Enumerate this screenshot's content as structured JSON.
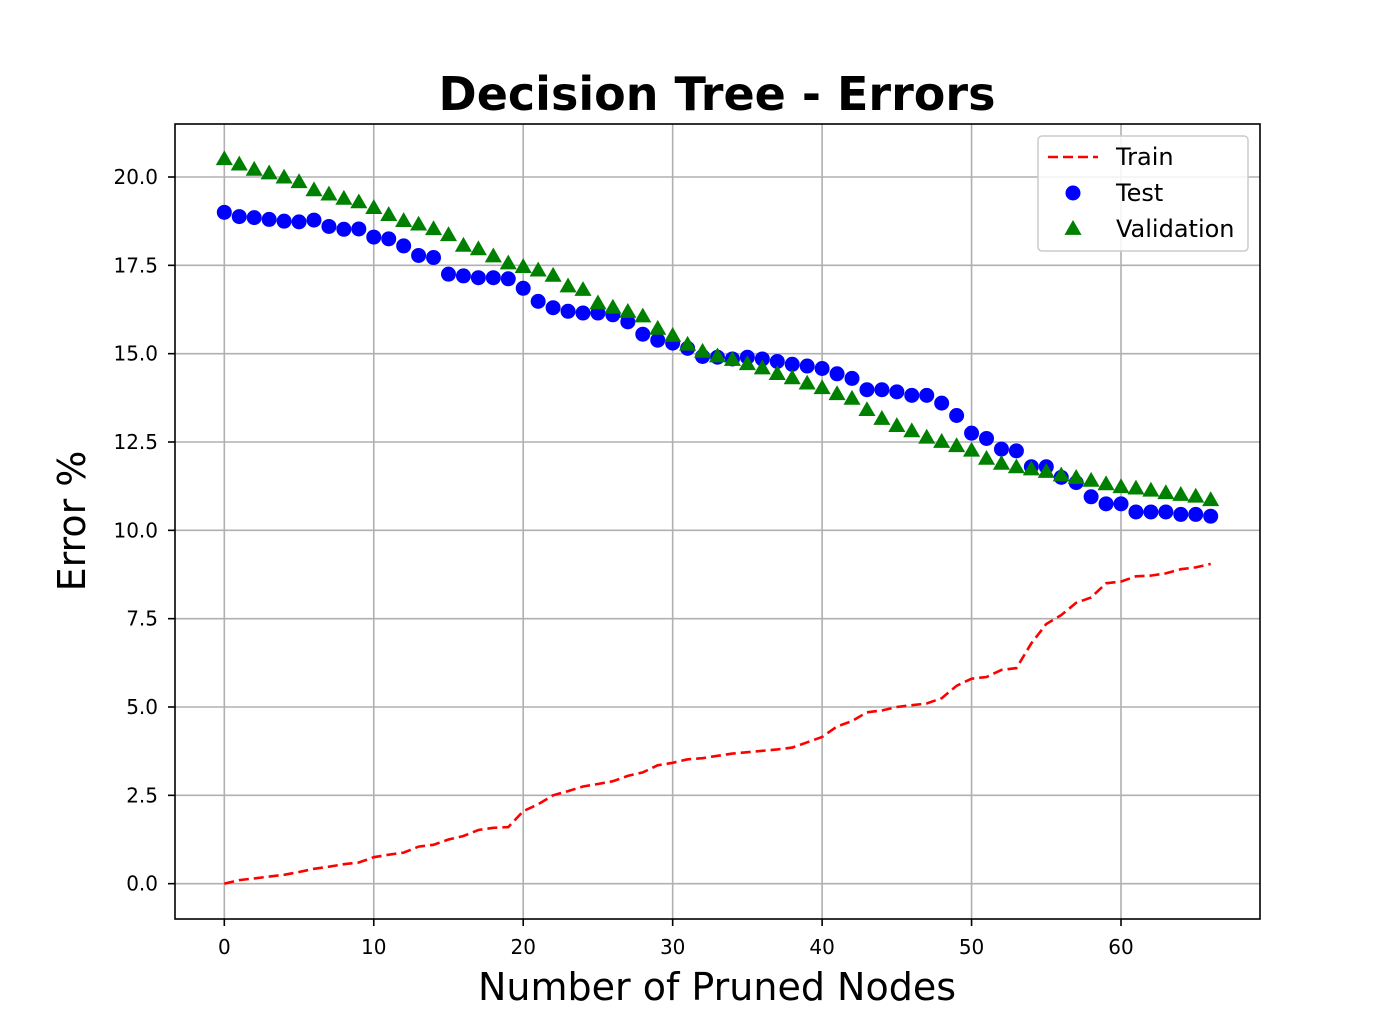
{
  "chart_data": {
    "type": "line",
    "title": "Decision Tree - Errors",
    "xlabel": "Number of Pruned Nodes",
    "ylabel": "Error %",
    "xlim": [
      -3.3,
      69.3
    ],
    "ylim": [
      -1.0,
      21.5
    ],
    "xticks": [
      0,
      10,
      20,
      30,
      40,
      50,
      60
    ],
    "xtick_labels": [
      "0",
      "10",
      "20",
      "30",
      "40",
      "50",
      "60"
    ],
    "yticks": [
      0,
      2.5,
      5,
      7.5,
      10,
      12.5,
      15,
      17.5,
      20
    ],
    "ytick_labels": [
      "0.0",
      "2.5",
      "5.0",
      "7.5",
      "10.0",
      "12.5",
      "15.0",
      "17.5",
      "20.0"
    ],
    "grid": true,
    "legend_position": "top-right",
    "x": [
      0,
      1,
      2,
      3,
      4,
      5,
      6,
      7,
      8,
      9,
      10,
      11,
      12,
      13,
      14,
      15,
      16,
      17,
      18,
      19,
      20,
      21,
      22,
      23,
      24,
      25,
      26,
      27,
      28,
      29,
      30,
      31,
      32,
      33,
      34,
      35,
      36,
      37,
      38,
      39,
      40,
      41,
      42,
      43,
      44,
      45,
      46,
      47,
      48,
      49,
      50,
      51,
      52,
      53,
      54,
      55,
      56,
      57,
      58,
      59,
      60,
      61,
      62,
      63,
      64,
      65,
      66
    ],
    "series": [
      {
        "name": "Train",
        "style": "dashed-line",
        "color": "#ff0000",
        "values": [
          0.0,
          0.1,
          0.15,
          0.2,
          0.25,
          0.33,
          0.42,
          0.48,
          0.55,
          0.6,
          0.75,
          0.82,
          0.88,
          1.05,
          1.1,
          1.25,
          1.35,
          1.52,
          1.58,
          1.6,
          2.05,
          2.25,
          2.5,
          2.62,
          2.75,
          2.82,
          2.9,
          3.05,
          3.15,
          3.35,
          3.42,
          3.52,
          3.55,
          3.62,
          3.68,
          3.72,
          3.76,
          3.8,
          3.85,
          4.0,
          4.15,
          4.45,
          4.6,
          4.85,
          4.9,
          5.0,
          5.05,
          5.1,
          5.25,
          5.6,
          5.8,
          5.85,
          6.05,
          6.1,
          6.8,
          7.35,
          7.6,
          7.95,
          8.1,
          8.5,
          8.55,
          8.7,
          8.72,
          8.78,
          8.9,
          8.95,
          9.05
        ]
      },
      {
        "name": "Test",
        "style": "circle-markers",
        "color": "#0000ff",
        "values": [
          19.0,
          18.88,
          18.85,
          18.8,
          18.75,
          18.73,
          18.78,
          18.6,
          18.52,
          18.53,
          18.3,
          18.25,
          18.05,
          17.78,
          17.72,
          17.25,
          17.2,
          17.15,
          17.15,
          17.12,
          16.85,
          16.48,
          16.3,
          16.2,
          16.15,
          16.15,
          16.1,
          15.9,
          15.55,
          15.38,
          15.3,
          15.15,
          14.92,
          14.9,
          14.85,
          14.9,
          14.85,
          14.78,
          14.7,
          14.65,
          14.58,
          14.43,
          14.3,
          13.98,
          13.98,
          13.92,
          13.82,
          13.82,
          13.6,
          13.25,
          12.75,
          12.6,
          12.3,
          12.25,
          11.8,
          11.8,
          11.5,
          11.35,
          10.95,
          10.75,
          10.75,
          10.52,
          10.52,
          10.52,
          10.45,
          10.45,
          10.4
        ]
      },
      {
        "name": "Validation",
        "style": "triangle-markers",
        "color": "#008000",
        "values": [
          20.5,
          20.35,
          20.2,
          20.1,
          19.98,
          19.85,
          19.62,
          19.5,
          19.38,
          19.28,
          19.12,
          18.92,
          18.75,
          18.65,
          18.52,
          18.35,
          18.05,
          17.95,
          17.75,
          17.55,
          17.45,
          17.35,
          17.2,
          16.9,
          16.8,
          16.42,
          16.3,
          16.18,
          16.05,
          15.7,
          15.5,
          15.25,
          15.05,
          14.92,
          14.82,
          14.7,
          14.58,
          14.42,
          14.3,
          14.15,
          14.02,
          13.85,
          13.72,
          13.4,
          13.15,
          12.95,
          12.8,
          12.62,
          12.5,
          12.38,
          12.25,
          12.02,
          11.88,
          11.78,
          11.72,
          11.65,
          11.55,
          11.48,
          11.4,
          11.3,
          11.22,
          11.18,
          11.12,
          11.05,
          11.0,
          10.95,
          10.85
        ]
      }
    ]
  }
}
